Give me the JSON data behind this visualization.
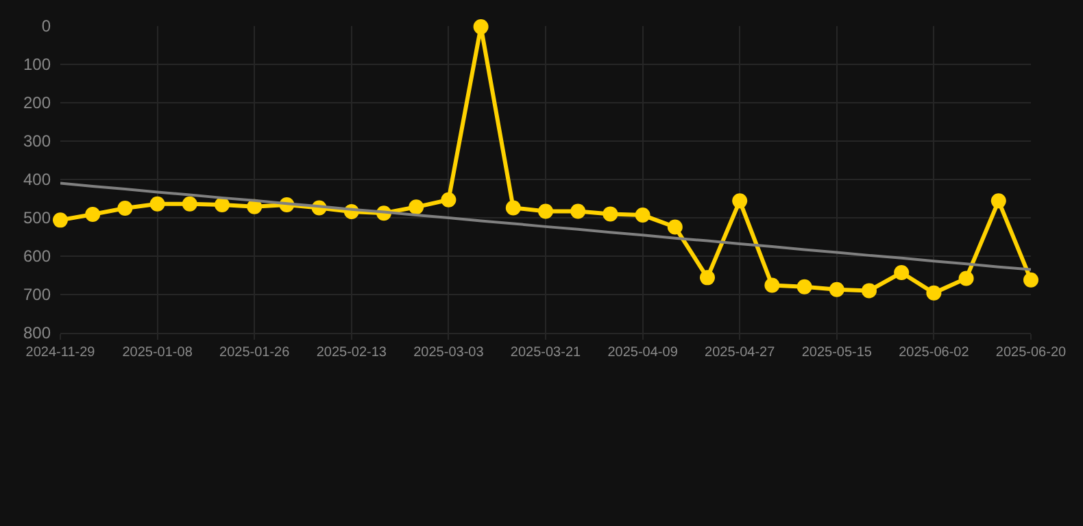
{
  "chart_data": {
    "type": "line",
    "categories": [
      "2024-11-29",
      null,
      null,
      "2025-01-08",
      null,
      null,
      "2025-01-26",
      null,
      null,
      "2025-02-13",
      null,
      null,
      "2025-03-03",
      null,
      null,
      "2025-03-21",
      null,
      null,
      "2025-04-09",
      null,
      null,
      "2025-04-27",
      null,
      null,
      "2025-05-15",
      null,
      null,
      "2025-06-02",
      null,
      null,
      "2025-06-20"
    ],
    "series": [
      {
        "color": "#ffd200",
        "marker": "circle",
        "values": [
          506,
          491,
          475,
          464,
          464,
          466,
          471,
          466,
          474,
          484,
          488,
          472,
          453,
          2,
          474,
          483,
          483,
          490,
          493,
          524,
          656,
          456,
          676,
          680,
          687,
          690,
          643,
          696,
          658,
          456,
          662
        ]
      },
      {
        "type": "line",
        "color": "#808080",
        "marker": "none",
        "values": [
          410,
          418,
          425,
          433,
          440,
          448,
          455,
          463,
          470,
          478,
          485,
          493,
          500,
          508,
          515,
          523,
          530,
          538,
          545,
          553,
          560,
          568,
          575,
          583,
          590,
          598,
          605,
          613,
          620,
          628,
          635
        ]
      }
    ],
    "ylim": [
      800,
      0
    ],
    "yticks": [
      0,
      100,
      200,
      300,
      400,
      500,
      600,
      700,
      800
    ],
    "grid": true
  }
}
